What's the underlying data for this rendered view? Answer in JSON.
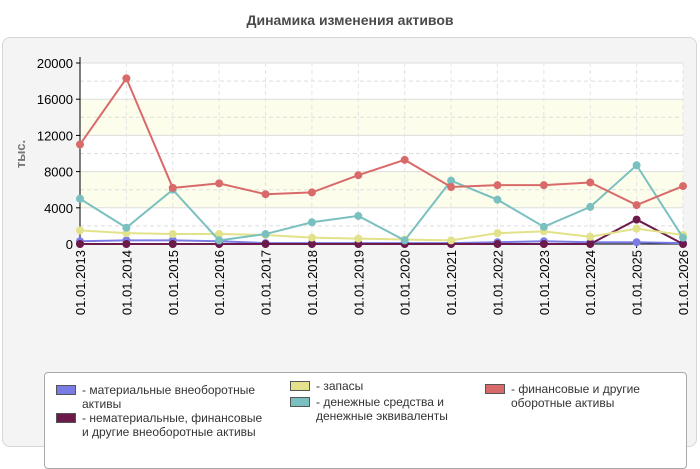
{
  "chart_data": {
    "type": "line",
    "title": "Динамика изменения активов",
    "ylabel": "тыс.",
    "xlabel": "",
    "ylim": [
      0,
      20000
    ],
    "y_ticks": [
      "0",
      "4000",
      "8000",
      "12000",
      "16000",
      "20000"
    ],
    "categories": [
      "01.01.2013",
      "01.01.2014",
      "01.01.2015",
      "01.01.2016",
      "01.01.2017",
      "01.01.2018",
      "01.01.2019",
      "01.01.2020",
      "01.01.2021",
      "01.01.2022",
      "01.01.2023",
      "01.01.2024",
      "01.01.2025",
      "01.01.2026"
    ],
    "grid": true,
    "legend_position": "bottom",
    "series": [
      {
        "name": "- материальные внеоборотные активы",
        "color": "#7b7be6",
        "values": [
          300,
          400,
          400,
          300,
          100,
          100,
          100,
          100,
          100,
          200,
          300,
          200,
          200,
          100
        ]
      },
      {
        "name": "- нематериальные, финансовые и другие внеоборотные активы",
        "color": "#6b1a4a",
        "values": [
          0,
          0,
          0,
          0,
          0,
          0,
          0,
          0,
          0,
          0,
          0,
          0,
          2700,
          0
        ]
      },
      {
        "name": "- запасы",
        "color": "#e2e28a",
        "values": [
          1500,
          1200,
          1100,
          1100,
          1000,
          700,
          600,
          500,
          400,
          1200,
          1400,
          800,
          1700,
          1000
        ]
      },
      {
        "name": "- денежные средства и денежные эквиваленты",
        "color": "#7bc0c0",
        "values": [
          5000,
          1800,
          6000,
          400,
          1100,
          2400,
          3100,
          400,
          7000,
          4900,
          1900,
          4100,
          8700,
          700
        ]
      },
      {
        "name": "- финансовые и другие оборотные активы",
        "color": "#d96a6a",
        "values": [
          11000,
          18300,
          6200,
          6700,
          5500,
          5700,
          7600,
          9300,
          6300,
          6500,
          6500,
          6800,
          4300,
          6400
        ]
      }
    ]
  }
}
